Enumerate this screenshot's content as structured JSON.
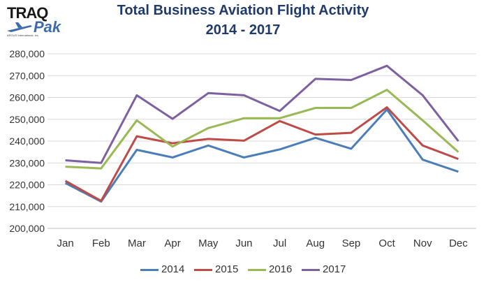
{
  "logo": {
    "primary": "TRAQ",
    "secondary": "Pak",
    "subtitle": "ARGUS International, Inc."
  },
  "title_line1": "Total Business Aviation Flight Activity",
  "title_line2": "2014 - 2017",
  "chart_data": {
    "type": "line",
    "categories": [
      "Jan",
      "Feb",
      "Mar",
      "Apr",
      "May",
      "Jun",
      "Jul",
      "Aug",
      "Sep",
      "Oct",
      "Nov",
      "Dec"
    ],
    "ylim": [
      200000,
      280000
    ],
    "yticks": [
      200000,
      210000,
      220000,
      230000,
      240000,
      250000,
      260000,
      270000,
      280000
    ],
    "ytick_labels": [
      "200,000",
      "210,000",
      "220,000",
      "230,000",
      "240,000",
      "250,000",
      "260,000",
      "270,000",
      "280,000"
    ],
    "grid": true,
    "legend_position": "bottom",
    "series": [
      {
        "name": "2014",
        "color": "#4a7ebb",
        "values": [
          220800,
          212300,
          236000,
          232500,
          238000,
          232500,
          236200,
          241500,
          236500,
          254500,
          231500,
          226000
        ]
      },
      {
        "name": "2015",
        "color": "#be4b48",
        "values": [
          221800,
          212600,
          242200,
          239000,
          241000,
          240200,
          249200,
          243000,
          243800,
          255500,
          238000,
          231800
        ]
      },
      {
        "name": "2016",
        "color": "#98b954",
        "values": [
          228300,
          227500,
          249500,
          237500,
          246000,
          250500,
          250500,
          255200,
          255200,
          263500,
          249500,
          235000
        ]
      },
      {
        "name": "2017",
        "color": "#7d60a0",
        "values": [
          231200,
          230000,
          261000,
          250200,
          262000,
          261000,
          253800,
          268500,
          268000,
          274500,
          261000,
          240000
        ]
      }
    ]
  }
}
